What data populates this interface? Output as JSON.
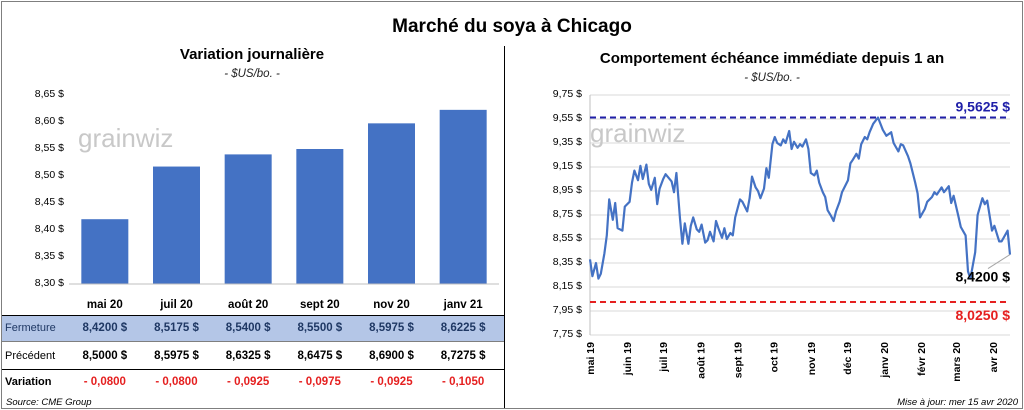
{
  "title": "Marché du soya à Chicago",
  "left": {
    "title": "Variation journalière",
    "subtitle": "- $US/bo. -",
    "watermark": "grainwiz",
    "yticks": [
      "8,65 $",
      "8,60 $",
      "8,55 $",
      "8,50 $",
      "8,45 $",
      "8,40 $",
      "8,35 $",
      "8,30 $"
    ],
    "table": {
      "row_labels": [
        "Fermeture",
        "Précédent",
        "Variation"
      ],
      "fermeture": [
        "8,4200  $",
        "8,5175  $",
        "8,5400  $",
        "8,5500  $",
        "8,5975  $",
        "8,6225  $"
      ],
      "precedent": [
        "8,5000  $",
        "8,5975  $",
        "8,6325  $",
        "8,6475  $",
        "8,6900  $",
        "8,7275  $"
      ],
      "variation": [
        "- 0,0800",
        "- 0,0800",
        "- 0,0925",
        "- 0,0975",
        "- 0,0925",
        "- 0,1050"
      ]
    }
  },
  "right": {
    "title": "Comportement  échéance immédiate depuis 1 an",
    "subtitle": "- $US/bo. -",
    "watermark": "grainwiz",
    "yticks": [
      "9,75 $",
      "9,55 $",
      "9,35 $",
      "9,15 $",
      "8,95 $",
      "8,75 $",
      "8,55 $",
      "8,35 $",
      "8,15 $",
      "7,95 $",
      "7,75 $"
    ],
    "xticks": [
      "mai 19",
      "juin 19",
      "juil 19",
      "août 19",
      "sept 19",
      "oct 19",
      "nov 19",
      "déc 19",
      "janv 20",
      "févr 20",
      "mars 20",
      "avr 20"
    ],
    "high_label": "9,5625  $",
    "last_label": "8,4200  $",
    "low_label": "8,0250  $"
  },
  "footer": {
    "source": "Source: CME Group",
    "update": "Mise à jour: mer 15 avr 2020"
  },
  "colors": {
    "bar": "#4472c4",
    "line": "#4472c4",
    "high": "#1f1fa8",
    "low": "#e52020",
    "table_highlight": "#b4c6e7",
    "negative": "#e52020"
  },
  "chart_data": [
    {
      "type": "bar",
      "title": "Variation journalière",
      "ylabel": "- $US/bo. -",
      "categories": [
        "mai 20",
        "juil 20",
        "août 20",
        "sept 20",
        "nov 20",
        "janv 21"
      ],
      "values": [
        8.42,
        8.5175,
        8.54,
        8.55,
        8.5975,
        8.6225
      ],
      "ylim": [
        8.3,
        8.65
      ],
      "grid": false
    },
    {
      "type": "line",
      "title": "Comportement  échéance immédiate depuis 1 an",
      "ylabel": "- $US/bo. -",
      "ylim": [
        7.75,
        9.75
      ],
      "grid": true,
      "x": [
        "2019-05-01",
        "2019-05-03",
        "2019-05-06",
        "2019-05-08",
        "2019-05-10",
        "2019-05-13",
        "2019-05-15",
        "2019-05-17",
        "2019-05-20",
        "2019-05-22",
        "2019-05-24",
        "2019-05-28",
        "2019-05-30",
        "2019-06-03",
        "2019-06-05",
        "2019-06-07",
        "2019-06-10",
        "2019-06-12",
        "2019-06-14",
        "2019-06-17",
        "2019-06-19",
        "2019-06-21",
        "2019-06-24",
        "2019-06-26",
        "2019-06-28",
        "2019-07-01",
        "2019-07-03",
        "2019-07-08",
        "2019-07-10",
        "2019-07-12",
        "2019-07-15",
        "2019-07-17",
        "2019-07-19",
        "2019-07-22",
        "2019-07-24",
        "2019-07-26",
        "2019-07-29",
        "2019-07-31",
        "2019-08-02",
        "2019-08-05",
        "2019-08-07",
        "2019-08-09",
        "2019-08-12",
        "2019-08-14",
        "2019-08-16",
        "2019-08-19",
        "2019-08-21",
        "2019-08-23",
        "2019-08-26",
        "2019-08-28",
        "2019-08-30",
        "2019-09-03",
        "2019-09-05",
        "2019-09-09",
        "2019-09-11",
        "2019-09-13",
        "2019-09-16",
        "2019-09-18",
        "2019-09-20",
        "2019-09-23",
        "2019-09-25",
        "2019-09-27",
        "2019-09-30",
        "2019-10-02",
        "2019-10-04",
        "2019-10-07",
        "2019-10-09",
        "2019-10-11",
        "2019-10-14",
        "2019-10-16",
        "2019-10-18",
        "2019-10-21",
        "2019-10-23",
        "2019-10-25",
        "2019-10-28",
        "2019-10-30",
        "2019-11-01",
        "2019-11-04",
        "2019-11-06",
        "2019-11-08",
        "2019-11-11",
        "2019-11-13",
        "2019-11-15",
        "2019-11-18",
        "2019-11-20",
        "2019-11-22",
        "2019-11-25",
        "2019-11-27",
        "2019-12-02",
        "2019-12-04",
        "2019-12-06",
        "2019-12-09",
        "2019-12-11",
        "2019-12-13",
        "2019-12-16",
        "2019-12-18",
        "2019-12-20",
        "2019-12-23",
        "2019-12-27",
        "2019-12-31",
        "2020-01-03",
        "2020-01-07",
        "2020-01-09",
        "2020-01-13",
        "2020-01-15",
        "2020-01-17",
        "2020-01-21",
        "2020-01-23",
        "2020-01-27",
        "2020-01-29",
        "2020-01-31",
        "2020-02-04",
        "2020-02-06",
        "2020-02-10",
        "2020-02-12",
        "2020-02-14",
        "2020-02-18",
        "2020-02-20",
        "2020-02-24",
        "2020-02-26",
        "2020-02-28",
        "2020-03-03",
        "2020-03-05",
        "2020-03-09",
        "2020-03-11",
        "2020-03-13",
        "2020-03-17",
        "2020-03-19",
        "2020-03-23",
        "2020-03-25",
        "2020-03-27",
        "2020-03-31",
        "2020-04-02",
        "2020-04-06",
        "2020-04-08",
        "2020-04-13",
        "2020-04-15"
      ],
      "y": [
        8.38,
        8.24,
        8.35,
        8.22,
        8.26,
        8.43,
        8.58,
        8.88,
        8.71,
        8.85,
        8.64,
        8.62,
        8.82,
        8.86,
        9.02,
        9.12,
        9.04,
        9.16,
        9.05,
        9.17,
        9.01,
        8.96,
        9.06,
        8.84,
        8.97,
        9.05,
        9.09,
        9.03,
        8.94,
        9.1,
        8.72,
        8.51,
        8.68,
        8.51,
        8.66,
        8.73,
        8.63,
        8.61,
        8.67,
        8.52,
        8.54,
        8.61,
        8.53,
        8.7,
        8.64,
        8.56,
        8.64,
        8.55,
        8.6,
        8.58,
        8.73,
        8.88,
        8.86,
        8.78,
        8.89,
        9.07,
        8.98,
        8.95,
        8.89,
        8.97,
        9.14,
        9.06,
        9.34,
        9.4,
        9.35,
        9.33,
        9.38,
        9.35,
        9.45,
        9.3,
        9.36,
        9.31,
        9.34,
        9.32,
        9.38,
        9.3,
        9.1,
        9.08,
        9.12,
        9.02,
        8.94,
        8.9,
        8.79,
        8.74,
        8.7,
        8.78,
        8.86,
        8.94,
        9.04,
        9.18,
        9.21,
        9.26,
        9.22,
        9.34,
        9.4,
        9.38,
        9.44,
        9.51,
        9.5625,
        9.46,
        9.41,
        9.44,
        9.35,
        9.28,
        9.34,
        9.33,
        9.24,
        9.18,
        9.02,
        8.93,
        8.73,
        8.8,
        8.86,
        8.9,
        8.94,
        8.92,
        8.98,
        8.94,
        8.99,
        8.85,
        8.91,
        8.74,
        8.65,
        8.58,
        8.28,
        8.22,
        8.44,
        8.75,
        8.89,
        8.84,
        8.87,
        8.62,
        8.66,
        8.53,
        8.53,
        8.62,
        8.42
      ]
    }
  ]
}
